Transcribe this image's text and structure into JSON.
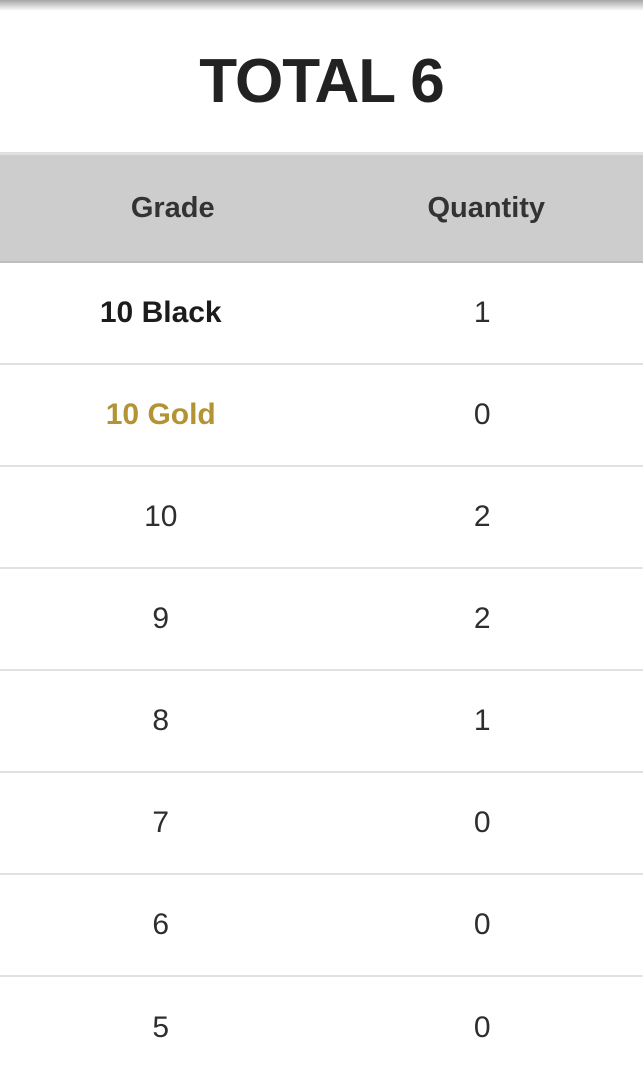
{
  "page": {
    "title": "TOTAL 6"
  },
  "table": {
    "header": {
      "grade": "Grade",
      "quantity": "Quantity"
    },
    "rows": [
      {
        "grade": "10 Black",
        "quantity": "1",
        "variant": "bold-black"
      },
      {
        "grade": "10 Gold",
        "quantity": "0",
        "variant": "bold-gold"
      },
      {
        "grade": "10",
        "quantity": "2",
        "variant": "normal"
      },
      {
        "grade": "9",
        "quantity": "2",
        "variant": "normal"
      },
      {
        "grade": "8",
        "quantity": "1",
        "variant": "normal"
      },
      {
        "grade": "7",
        "quantity": "0",
        "variant": "normal"
      },
      {
        "grade": "6",
        "quantity": "0",
        "variant": "normal"
      },
      {
        "grade": "5",
        "quantity": "0",
        "variant": "normal"
      }
    ]
  },
  "colors": {
    "gold_accent": "#b29435",
    "header_background": "#cdcdcd",
    "row_divider": "#e1e1e1"
  }
}
